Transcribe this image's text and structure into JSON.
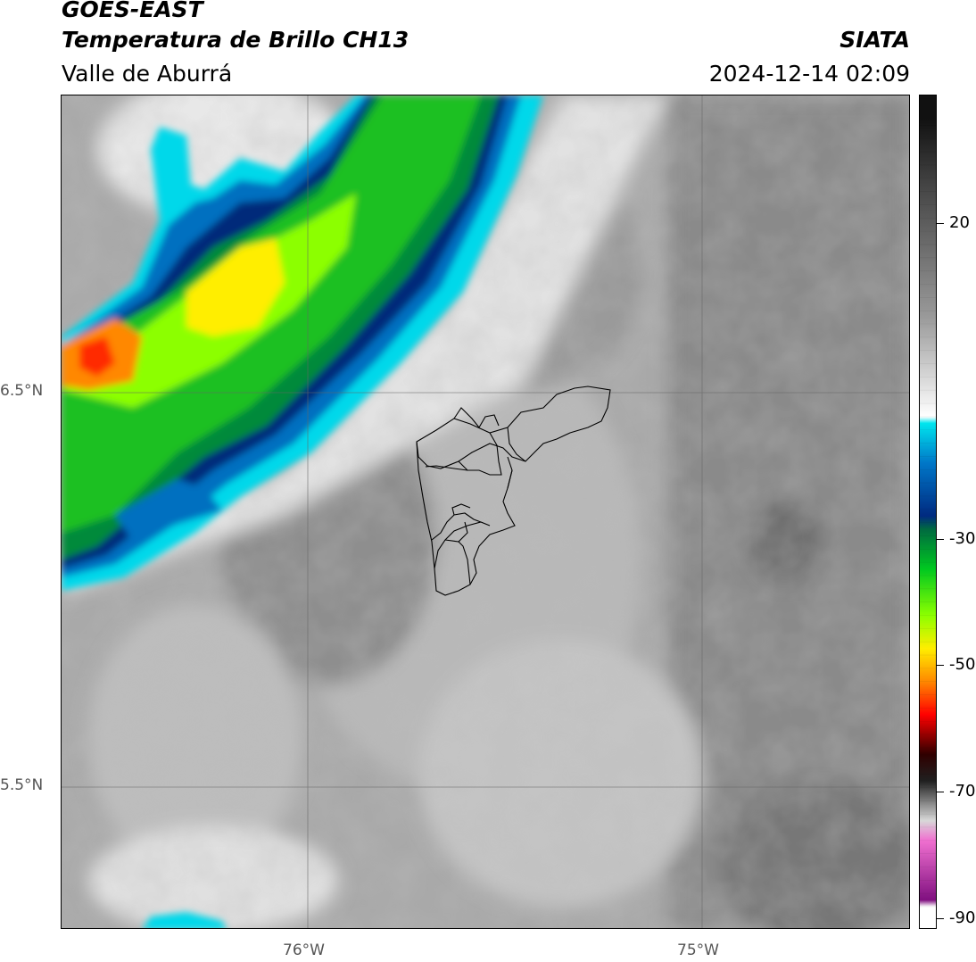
{
  "header": {
    "line1": "GOES-EAST",
    "line2": "Temperatura de Brillo CH13",
    "subtitle": "Valle de Aburrá",
    "org": "SIATA",
    "timestamp": "2024-12-14 02:09"
  },
  "map": {
    "lat_labels": [
      "6.5°N",
      "5.5°N"
    ],
    "lon_labels": [
      "76°W",
      "75°W"
    ]
  },
  "colorbar": {
    "ticks": [
      "20",
      "-30",
      "-50",
      "-70",
      "-90"
    ],
    "stops": [
      {
        "t": 30,
        "c": "#111111"
      },
      {
        "t": 20,
        "c": "#444444"
      },
      {
        "t": 0,
        "c": "#9a9a9a"
      },
      {
        "t": -15,
        "c": "#ffffff"
      },
      {
        "t": -16,
        "c": "#00e5ee"
      },
      {
        "t": -22,
        "c": "#0077c8"
      },
      {
        "t": -30,
        "c": "#002a80"
      },
      {
        "t": -32,
        "c": "#006a40"
      },
      {
        "t": -38,
        "c": "#00c820"
      },
      {
        "t": -45,
        "c": "#8cff00"
      },
      {
        "t": -50,
        "c": "#ffee00"
      },
      {
        "t": -55,
        "c": "#ff8800"
      },
      {
        "t": -60,
        "c": "#ff0000"
      },
      {
        "t": -66,
        "c": "#300000"
      },
      {
        "t": -70,
        "c": "#202020"
      },
      {
        "t": -76,
        "c": "#d8d8d8"
      },
      {
        "t": -79,
        "c": "#f070d0"
      },
      {
        "t": -88,
        "c": "#801080"
      },
      {
        "t": -89,
        "c": "#ffffff"
      }
    ]
  }
}
